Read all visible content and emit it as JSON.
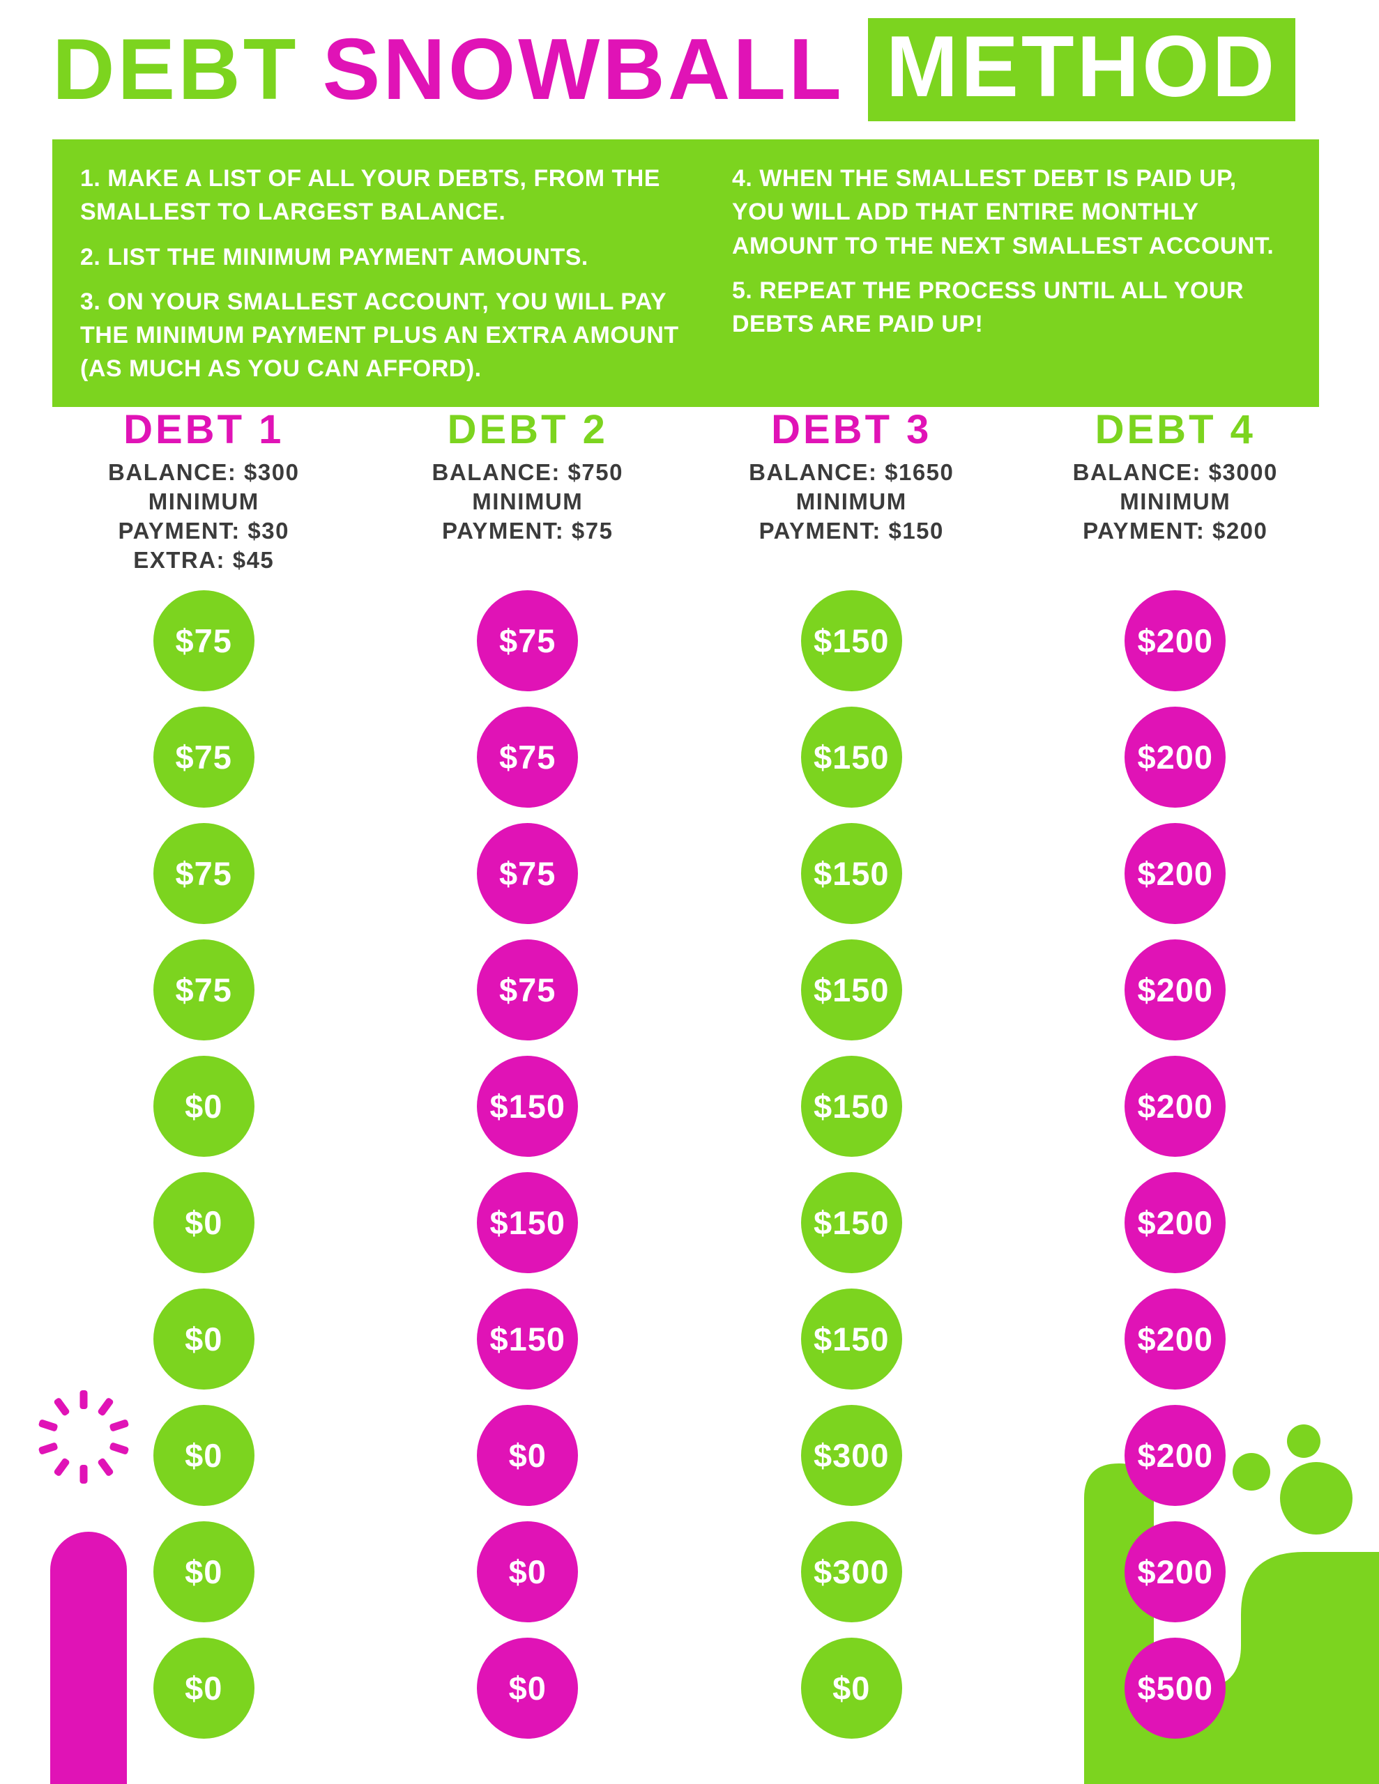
{
  "colors": {
    "green": "#7CD41F",
    "magenta": "#E013B6",
    "heading_text": "#3B3B3B",
    "background": "#FFFFFF",
    "circle_text": "#FFFFFF"
  },
  "title": {
    "word1": "DEBT",
    "word2": "SNOWBALL",
    "word3": "METHOD"
  },
  "instructions": {
    "left": [
      "1. MAKE A LIST OF ALL YOUR DEBTS, FROM THE SMALLEST TO LARGEST BALANCE.",
      "2. LIST THE MINIMUM PAYMENT AMOUNTS.",
      "3. ON YOUR SMALLEST ACCOUNT, YOU WILL PAY THE MINIMUM PAYMENT PLUS AN EXTRA AMOUNT (AS MUCH AS YOU CAN AFFORD)."
    ],
    "right": [
      "4. WHEN THE SMALLEST DEBT IS PAID UP, YOU WILL ADD THAT ENTIRE MONTHLY AMOUNT TO THE NEXT SMALLEST ACCOUNT.",
      "5. REPEAT THE PROCESS UNTIL ALL YOUR DEBTS ARE PAID UP!"
    ]
  },
  "debts": [
    {
      "name": "DEBT 1",
      "name_color": "magenta",
      "info": [
        "BALANCE: $300",
        "MINIMUM",
        "PAYMENT: $30",
        "EXTRA: $45"
      ],
      "circle_color": "green",
      "payments": [
        "$75",
        "$75",
        "$75",
        "$75",
        "$0",
        "$0",
        "$0",
        "$0",
        "$0",
        "$0"
      ]
    },
    {
      "name": "DEBT 2",
      "name_color": "green",
      "info": [
        "BALANCE: $750",
        "MINIMUM",
        "PAYMENT: $75"
      ],
      "circle_color": "magenta",
      "payments": [
        "$75",
        "$75",
        "$75",
        "$75",
        "$150",
        "$150",
        "$150",
        "$0",
        "$0",
        "$0"
      ]
    },
    {
      "name": "DEBT 3",
      "name_color": "magenta",
      "info": [
        "BALANCE: $1650",
        "MINIMUM",
        "PAYMENT: $150"
      ],
      "circle_color": "green",
      "payments": [
        "$150",
        "$150",
        "$150",
        "$150",
        "$150",
        "$150",
        "$150",
        "$300",
        "$300",
        "$0"
      ]
    },
    {
      "name": "DEBT 4",
      "name_color": "green",
      "info": [
        "BALANCE: $3000",
        "MINIMUM",
        "PAYMENT: $200"
      ],
      "circle_color": "magenta",
      "payments": [
        "$200",
        "$200",
        "$200",
        "$200",
        "$200",
        "$200",
        "$200",
        "$200",
        "$200",
        "$500"
      ]
    }
  ],
  "decorations": [
    "starburst-icon",
    "pill-bar-shape",
    "corner-blob-shape"
  ]
}
